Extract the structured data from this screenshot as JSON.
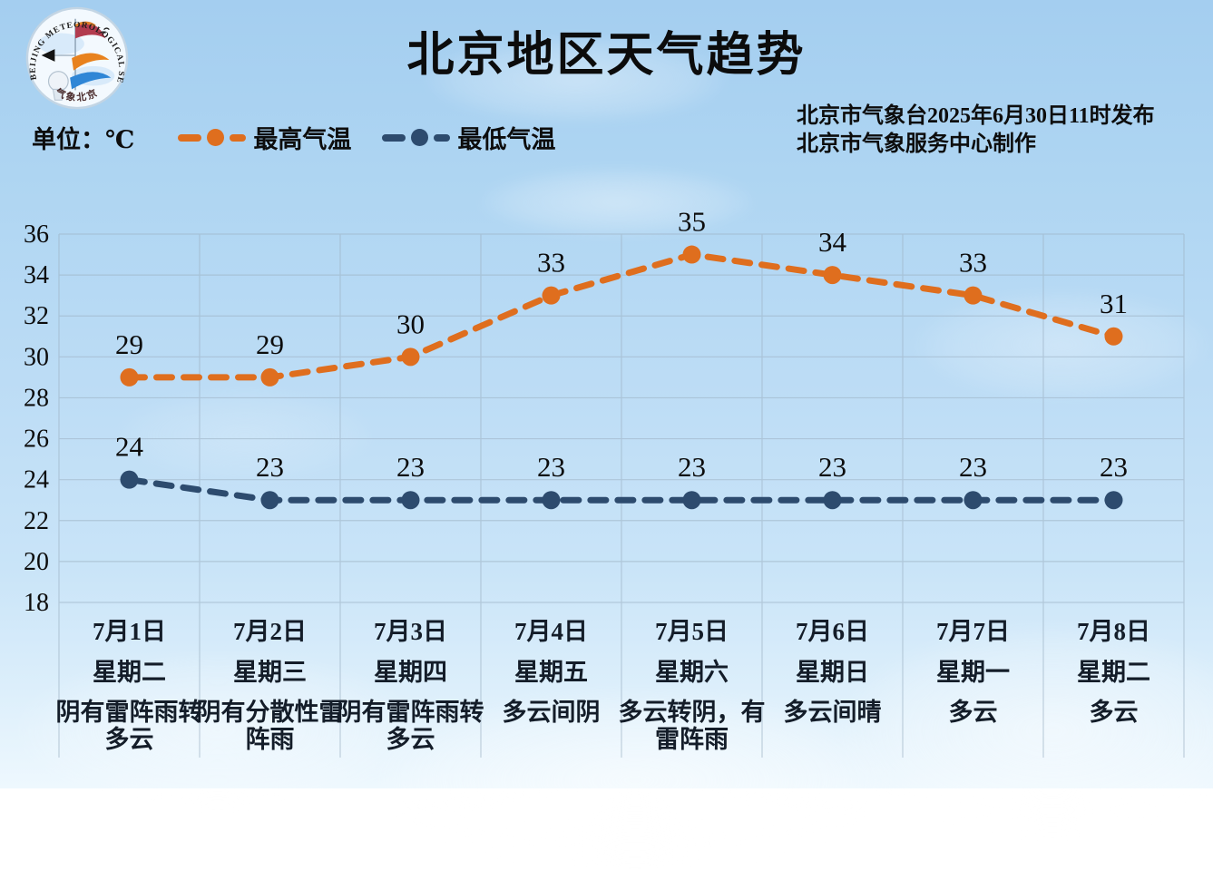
{
  "header": {
    "title": "北京地区天气趋势",
    "issued_line1": "北京市气象台2025年6月30日11时发布",
    "issued_line2": "北京市气象服务中心制作",
    "logo": {
      "ring_text": "BEIJING  METEOROLOGICAL  SERVICE",
      "bottom_text": "气象北京"
    }
  },
  "legend": {
    "unit_label": "单位：℃",
    "high_label": "最高气温",
    "low_label": "最低气温"
  },
  "colors": {
    "high": "#df6e1e",
    "low": "#2d4b6e",
    "grid": "#9fb4c6",
    "tick_text": "#0c0c0c",
    "day_text": "#141d29"
  },
  "chart_data": {
    "type": "line",
    "title": "北京地区天气趋势",
    "unit": "℃",
    "ylim": [
      18,
      36
    ],
    "yticks": [
      36,
      34,
      32,
      30,
      28,
      26,
      24,
      22,
      20,
      18
    ],
    "grid": true,
    "legend_position": "top-left",
    "categories": [
      {
        "date": "7月1日",
        "weekday": "星期二",
        "weather": "阴有雷阵雨转多云",
        "weather_lines": [
          "阴有雷阵雨转",
          "多云"
        ]
      },
      {
        "date": "7月2日",
        "weekday": "星期三",
        "weather": "阴有分散性雷阵雨",
        "weather_lines": [
          "阴有分散性雷",
          "阵雨"
        ]
      },
      {
        "date": "7月3日",
        "weekday": "星期四",
        "weather": "阴有雷阵雨转多云",
        "weather_lines": [
          "阴有雷阵雨转",
          "多云"
        ]
      },
      {
        "date": "7月4日",
        "weekday": "星期五",
        "weather": "多云间阴",
        "weather_lines": [
          "多云间阴"
        ]
      },
      {
        "date": "7月5日",
        "weekday": "星期六",
        "weather": "多云转阴，有雷阵雨",
        "weather_lines": [
          "多云转阴，有",
          "雷阵雨"
        ]
      },
      {
        "date": "7月6日",
        "weekday": "星期日",
        "weather": "多云间晴",
        "weather_lines": [
          "多云间晴"
        ]
      },
      {
        "date": "7月7日",
        "weekday": "星期一",
        "weather": "多云",
        "weather_lines": [
          "多云"
        ]
      },
      {
        "date": "7月8日",
        "weekday": "星期二",
        "weather": "多云",
        "weather_lines": [
          "多云"
        ]
      }
    ],
    "series": [
      {
        "name": "最高气温",
        "color": "#df6e1e",
        "values": [
          29,
          29,
          30,
          33,
          35,
          34,
          33,
          31
        ]
      },
      {
        "name": "最低气温",
        "color": "#2d4b6e",
        "values": [
          24,
          23,
          23,
          23,
          23,
          23,
          23,
          23
        ]
      }
    ]
  }
}
